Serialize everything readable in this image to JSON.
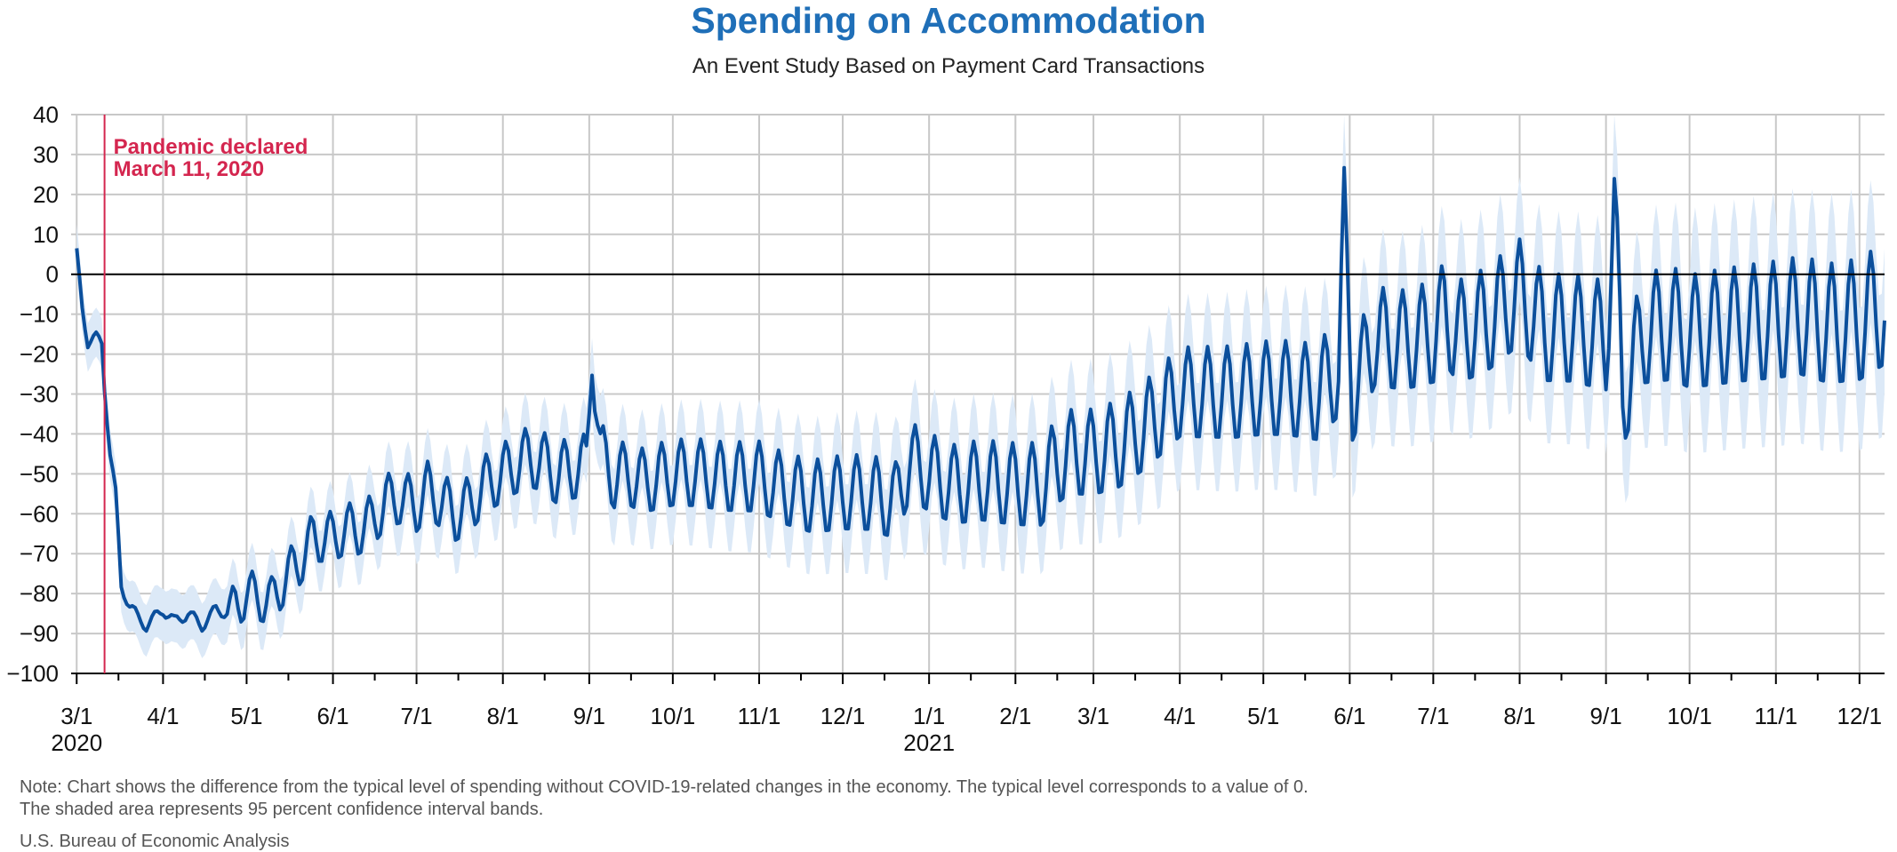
{
  "title": "Spending on Accommodation",
  "subtitle": "An Event Study Based on Payment Card Transactions",
  "note_line1": "Note: Chart shows the difference from the typical level of spending without COVID-19-related changes in the economy. The typical level corresponds to a value of 0.",
  "note_line2": "The shaded area represents 95 percent confidence interval bands.",
  "source": "U.S. Bureau of Economic Analysis",
  "colors": {
    "title": "#1f6fb8",
    "line": "#0b4f9c",
    "band": "#dce9f7",
    "event": "#d4264f",
    "grid": "#c8c8c8",
    "zero": "#000000"
  },
  "chart_data": {
    "type": "line",
    "ylim": [
      -100,
      40
    ],
    "yticks": [
      40,
      30,
      20,
      10,
      0,
      -10,
      -20,
      -30,
      -40,
      -50,
      -60,
      -70,
      -80,
      -90,
      -100
    ],
    "xlim": [
      "2020-02-28",
      "2021-12-10"
    ],
    "xticks": [
      {
        "date": "2020-03-01",
        "label": "3/1",
        "year": "2020"
      },
      {
        "date": "2020-04-01",
        "label": "4/1"
      },
      {
        "date": "2020-05-01",
        "label": "5/1"
      },
      {
        "date": "2020-06-01",
        "label": "6/1"
      },
      {
        "date": "2020-07-01",
        "label": "7/1"
      },
      {
        "date": "2020-08-01",
        "label": "8/1"
      },
      {
        "date": "2020-09-01",
        "label": "9/1"
      },
      {
        "date": "2020-10-01",
        "label": "10/1"
      },
      {
        "date": "2020-11-01",
        "label": "11/1"
      },
      {
        "date": "2020-12-01",
        "label": "12/1"
      },
      {
        "date": "2021-01-01",
        "label": "1/1",
        "year": "2021"
      },
      {
        "date": "2021-02-01",
        "label": "2/1"
      },
      {
        "date": "2021-03-01",
        "label": "3/1"
      },
      {
        "date": "2021-04-01",
        "label": "4/1"
      },
      {
        "date": "2021-05-01",
        "label": "5/1"
      },
      {
        "date": "2021-06-01",
        "label": "6/1"
      },
      {
        "date": "2021-07-01",
        "label": "7/1"
      },
      {
        "date": "2021-08-01",
        "label": "8/1"
      },
      {
        "date": "2021-09-01",
        "label": "9/1"
      },
      {
        "date": "2021-10-01",
        "label": "10/1"
      },
      {
        "date": "2021-11-01",
        "label": "11/1"
      },
      {
        "date": "2021-12-01",
        "label": "12/1"
      }
    ],
    "annotation": {
      "date": "2020-03-11",
      "label_line1": "Pandemic declared",
      "label_line2": "March 11, 2020"
    },
    "series": [
      {
        "type": "line",
        "points": [
          [
            "2020-03-01",
            5
          ],
          [
            "2020-03-03",
            -8
          ],
          [
            "2020-03-05",
            -17
          ],
          [
            "2020-03-08",
            -16
          ],
          [
            "2020-03-10",
            -17
          ],
          [
            "2020-03-11",
            -28
          ],
          [
            "2020-03-13",
            -45
          ],
          [
            "2020-03-15",
            -55
          ],
          [
            "2020-03-17",
            -78
          ],
          [
            "2020-03-20",
            -83
          ],
          [
            "2020-03-23",
            -86
          ],
          [
            "2020-03-26",
            -88
          ],
          [
            "2020-04-01",
            -84
          ],
          [
            "2020-04-05",
            -87
          ],
          [
            "2020-04-10",
            -85
          ],
          [
            "2020-04-15",
            -88
          ],
          [
            "2020-04-20",
            -84
          ],
          [
            "2020-04-25",
            -85
          ],
          [
            "2020-05-01",
            -80
          ],
          [
            "2020-05-05",
            -81
          ],
          [
            "2020-05-10",
            -82
          ],
          [
            "2020-05-15",
            -76
          ],
          [
            "2020-05-20",
            -72
          ],
          [
            "2020-05-25",
            -66
          ],
          [
            "2020-06-01",
            -66
          ],
          [
            "2020-06-05",
            -64
          ],
          [
            "2020-06-10",
            -64
          ],
          [
            "2020-06-15",
            -62
          ],
          [
            "2020-06-20",
            -57
          ],
          [
            "2020-06-25",
            -56
          ],
          [
            "2020-07-01",
            -58
          ],
          [
            "2020-07-05",
            -54
          ],
          [
            "2020-07-10",
            -57
          ],
          [
            "2020-07-15",
            -60
          ],
          [
            "2020-07-20",
            -58
          ],
          [
            "2020-07-25",
            -53
          ],
          [
            "2020-08-01",
            -50
          ],
          [
            "2020-08-05",
            -48
          ],
          [
            "2020-08-10",
            -46
          ],
          [
            "2020-08-15",
            -47
          ],
          [
            "2020-08-20",
            -50
          ],
          [
            "2020-08-25",
            -49
          ],
          [
            "2020-08-31",
            -48
          ],
          [
            "2020-09-02",
            -18
          ],
          [
            "2020-09-05",
            -45
          ],
          [
            "2020-09-10",
            -51
          ],
          [
            "2020-09-15",
            -50
          ],
          [
            "2020-09-20",
            -52
          ],
          [
            "2020-10-01",
            -50
          ],
          [
            "2020-10-10",
            -50
          ],
          [
            "2020-10-20",
            -51
          ],
          [
            "2020-11-01",
            -51
          ],
          [
            "2020-11-10",
            -54
          ],
          [
            "2020-11-20",
            -56
          ],
          [
            "2020-12-01",
            -55
          ],
          [
            "2020-12-10",
            -55
          ],
          [
            "2020-12-20",
            -57
          ],
          [
            "2020-12-25",
            -47
          ],
          [
            "2021-01-01",
            -50
          ],
          [
            "2021-01-10",
            -53
          ],
          [
            "2021-01-20",
            -52
          ],
          [
            "2021-02-01",
            -53
          ],
          [
            "2021-02-10",
            -53
          ],
          [
            "2021-02-15",
            -48
          ],
          [
            "2021-02-20",
            -45
          ],
          [
            "2021-03-01",
            -45
          ],
          [
            "2021-03-10",
            -43
          ],
          [
            "2021-03-20",
            -38
          ],
          [
            "2021-04-01",
            -30
          ],
          [
            "2021-04-10",
            -30
          ],
          [
            "2021-04-20",
            -30
          ],
          [
            "2021-05-01",
            -29
          ],
          [
            "2021-05-10",
            -29
          ],
          [
            "2021-05-20",
            -30
          ],
          [
            "2021-05-28",
            -24
          ],
          [
            "2021-05-30",
            14
          ],
          [
            "2021-06-02",
            -30
          ],
          [
            "2021-06-10",
            -16
          ],
          [
            "2021-06-20",
            -17
          ],
          [
            "2021-07-01",
            -15
          ],
          [
            "2021-07-05",
            -10
          ],
          [
            "2021-07-10",
            -15
          ],
          [
            "2021-07-20",
            -12
          ],
          [
            "2021-08-01",
            -5
          ],
          [
            "2021-08-10",
            -14
          ],
          [
            "2021-08-20",
            -14
          ],
          [
            "2021-09-01",
            -16
          ],
          [
            "2021-09-04",
            15
          ],
          [
            "2021-09-07",
            -30
          ],
          [
            "2021-09-15",
            -14
          ],
          [
            "2021-09-25",
            -13
          ],
          [
            "2021-10-01",
            -15
          ],
          [
            "2021-10-10",
            -14
          ],
          [
            "2021-10-20",
            -13
          ],
          [
            "2021-11-01",
            -12
          ],
          [
            "2021-11-10",
            -11
          ],
          [
            "2021-11-20",
            -13
          ],
          [
            "2021-12-01",
            -12
          ],
          [
            "2021-12-10",
            -8
          ]
        ]
      }
    ]
  }
}
